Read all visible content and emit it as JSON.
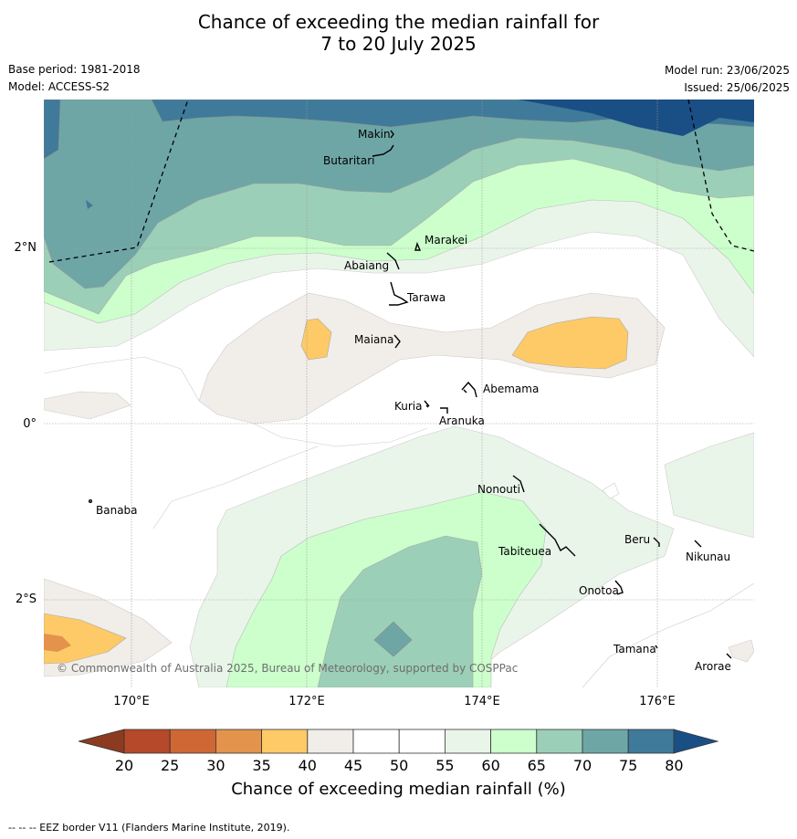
{
  "title_line1": "Chance of exceeding the median rainfall for",
  "title_line2": "7 to 20 July 2025",
  "base_period": "Base period: 1981-2018",
  "model": "Model: ACCESS-S2",
  "model_run": "Model run: 23/06/2025",
  "issued": "Issued: 25/06/2025",
  "lon_labels": [
    "170°E",
    "172°E",
    "174°E",
    "176°E"
  ],
  "lat_labels": [
    "2°N",
    "0°",
    "2°S"
  ],
  "places": {
    "makin": "Makin",
    "butaritari": "Butaritari",
    "marakei": "Marakei",
    "abaiang": "Abaiang",
    "tarawa": "Tarawa",
    "maiana": "Maiana",
    "abemama": "Abemama",
    "kuria": "Kuria",
    "aranuka": "Aranuka",
    "banaba": "Banaba",
    "nonouti": "Nonouti",
    "tabiteuea": "Tabiteuea",
    "beru": "Beru",
    "nikunau": "Nikunau",
    "onotoa": "Onotoa",
    "tamana": "Tamana",
    "arorae": "Arorae"
  },
  "copyright": "© Commonwealth of Australia 2025, Bureau of Meteorology, supported by COSPPac",
  "colorbar": {
    "ticks": [
      "20",
      "25",
      "30",
      "35",
      "40",
      "45",
      "50",
      "55",
      "60",
      "65",
      "70",
      "75",
      "80"
    ],
    "colors": [
      "#b5492a",
      "#cf6734",
      "#e3934b",
      "#fdca67",
      "#f1ede8",
      "#ffffff",
      "#ffffff",
      "#eaf5ea",
      "#ccffcc",
      "#9ccfb7",
      "#6ea6a6",
      "#3f7a9a"
    ],
    "under_color": "#8c3b20",
    "over_color": "#1a4f85",
    "label": "Chance of exceeding median rainfall (%)"
  },
  "footnote": "--  --  -- EEZ border V11 (Flanders Marine Institute, 2019)."
}
